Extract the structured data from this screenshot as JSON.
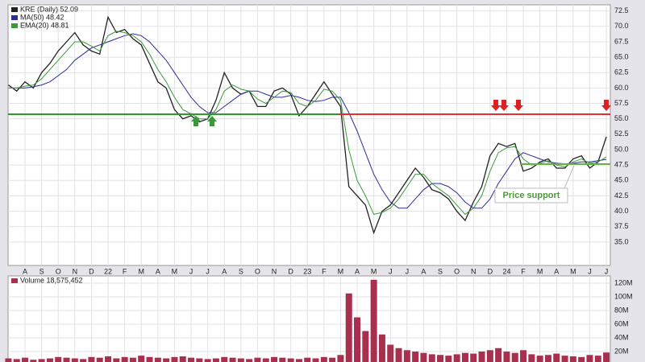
{
  "chart_data": [
    {
      "type": "line",
      "x": [
        -1,
        -0.5,
        0,
        0.5,
        1,
        1.5,
        2,
        2.5,
        3,
        3.5,
        4,
        4.5,
        5,
        5.5,
        6,
        6.5,
        7,
        7.5,
        8,
        8.5,
        9,
        9.5,
        10,
        10.5,
        11,
        11.5,
        12,
        12.5,
        13,
        13.5,
        14,
        14.5,
        15,
        15.5,
        16,
        16.5,
        17,
        17.5,
        18,
        18.5,
        19,
        19.5,
        20,
        20.5,
        21,
        21.5,
        22,
        22.5,
        23,
        23.5,
        24,
        24.5,
        25,
        25.5,
        26,
        26.5,
        27,
        27.5,
        28,
        28.5,
        29,
        29.5,
        30,
        30.5,
        31,
        31.5,
        32,
        32.5,
        33,
        33.5,
        34,
        34.5,
        35
      ],
      "series": [
        {
          "name": "KRE (Daily) 52.09",
          "color": "#222222",
          "values": [
            60.5,
            59.5,
            61,
            60,
            62.5,
            64,
            66,
            67.5,
            69,
            67,
            66,
            65.5,
            71.5,
            69,
            69.5,
            68,
            67,
            64,
            61,
            60,
            56.5,
            55,
            55.5,
            54.5,
            55,
            58,
            62.5,
            60,
            59,
            59.5,
            57,
            57,
            59.5,
            60,
            59,
            55.5,
            57,
            59,
            61,
            59,
            57,
            44,
            42.5,
            41,
            36.5,
            40,
            41,
            43,
            45,
            47,
            45.5,
            43.5,
            43,
            42,
            40,
            38.5,
            41.5,
            44,
            49,
            51,
            50.5,
            51,
            46.5,
            47,
            48,
            48.5,
            47,
            47,
            48.5,
            49,
            47,
            48,
            52.09
          ]
        },
        {
          "name": "MA(50) 48.42",
          "color": "#2c2c96",
          "values": [
            60,
            60,
            60,
            60.2,
            60.5,
            61,
            62,
            63,
            64.5,
            65.5,
            66.5,
            67,
            67.5,
            68,
            68.5,
            68.8,
            68.5,
            67.5,
            66,
            64.5,
            62.5,
            60.5,
            58.5,
            57,
            56,
            56,
            57,
            58,
            59,
            59.5,
            59.5,
            59,
            58.5,
            58.5,
            58.8,
            58.5,
            58,
            57.8,
            58,
            58.5,
            58.5,
            56,
            53,
            49.5,
            46,
            43.5,
            41.5,
            40.5,
            40.5,
            42,
            43.5,
            44.5,
            44.5,
            44,
            43,
            41.5,
            40.5,
            40.5,
            42,
            44.5,
            46.5,
            48.5,
            49.5,
            49,
            48.5,
            48,
            47.8,
            47.7,
            47.8,
            48,
            48,
            48.2,
            48.42
          ]
        },
        {
          "name": "EMA(20) 48.81",
          "color": "#3a9a3a",
          "values": [
            60,
            60,
            60.3,
            60.5,
            61.5,
            63,
            64.5,
            66,
            67.5,
            67.5,
            66.8,
            66,
            68.5,
            69.2,
            69,
            68.5,
            67.5,
            65.5,
            63,
            61,
            58.5,
            56.5,
            55.8,
            55,
            55,
            56.5,
            59.5,
            60.5,
            59.8,
            59.5,
            58.2,
            57.5,
            58.5,
            59.5,
            59.3,
            57.5,
            57,
            58,
            59.8,
            59.5,
            58,
            50,
            45,
            42.5,
            39.5,
            39.8,
            40.5,
            42,
            44,
            46,
            46,
            44.5,
            43.5,
            42.5,
            41,
            39.5,
            40.5,
            42.5,
            46.5,
            49.5,
            50.3,
            50.5,
            48.5,
            47.5,
            47.8,
            48.2,
            47.5,
            47.2,
            48,
            48.5,
            47.8,
            48,
            48.81
          ]
        }
      ],
      "xlim": [
        -1.02,
        35.24
      ],
      "xticks": [
        {
          "value": 0,
          "label": "A"
        },
        {
          "value": 1,
          "label": "S"
        },
        {
          "value": 2,
          "label": "O"
        },
        {
          "value": 3,
          "label": "N"
        },
        {
          "value": 4,
          "label": "D"
        },
        {
          "value": 5,
          "label": "22"
        },
        {
          "value": 6,
          "label": "F"
        },
        {
          "value": 7,
          "label": "M"
        },
        {
          "value": 8,
          "label": "A"
        },
        {
          "value": 9,
          "label": "M"
        },
        {
          "value": 10,
          "label": "J"
        },
        {
          "value": 11,
          "label": "J"
        },
        {
          "value": 12,
          "label": "A"
        },
        {
          "value": 13,
          "label": "S"
        },
        {
          "value": 14,
          "label": "O"
        },
        {
          "value": 15,
          "label": "N"
        },
        {
          "value": 16,
          "label": "D"
        },
        {
          "value": 17,
          "label": "23"
        },
        {
          "value": 18,
          "label": "F"
        },
        {
          "value": 19,
          "label": "M"
        },
        {
          "value": 20,
          "label": "A"
        },
        {
          "value": 21,
          "label": "M"
        },
        {
          "value": 22,
          "label": "J"
        },
        {
          "value": 23,
          "label": "J"
        },
        {
          "value": 24,
          "label": "A"
        },
        {
          "value": 25,
          "label": "S"
        },
        {
          "value": 26,
          "label": "O"
        },
        {
          "value": 27,
          "label": "N"
        },
        {
          "value": 28,
          "label": "D"
        },
        {
          "value": 29,
          "label": "24"
        },
        {
          "value": 30,
          "label": "F"
        },
        {
          "value": 31,
          "label": "M"
        },
        {
          "value": 32,
          "label": "A"
        },
        {
          "value": 33,
          "label": "M"
        },
        {
          "value": 34,
          "label": "J"
        },
        {
          "value": 35,
          "label": "J"
        }
      ],
      "ylim": [
        31.2,
        73.5
      ],
      "yticks": [
        {
          "value": 35,
          "label": "35.0"
        },
        37.5,
        {
          "value": 40,
          "label": "40.0"
        },
        42.5,
        {
          "value": 45,
          "label": "45.0"
        },
        47.5,
        {
          "value": 50,
          "label": "50.0"
        },
        52.5,
        {
          "value": 55,
          "label": "55.0"
        },
        57.5,
        {
          "value": 60,
          "label": "60.0"
        },
        62.5,
        {
          "value": 65,
          "label": "65.0"
        },
        67.5,
        {
          "value": 70,
          "label": "70.0"
        },
        72.5
      ],
      "grid": true,
      "annotation": "Price support"
    },
    {
      "type": "bar",
      "x": [
        -1,
        -0.5,
        0,
        0.5,
        1,
        1.5,
        2,
        2.5,
        3,
        3.5,
        4,
        4.5,
        5,
        5.5,
        6,
        6.5,
        7,
        7.5,
        8,
        8.5,
        9,
        9.5,
        10,
        10.5,
        11,
        11.5,
        12,
        12.5,
        13,
        13.5,
        14,
        14.5,
        15,
        15.5,
        16,
        16.5,
        17,
        17.5,
        18,
        18.5,
        19,
        19.5,
        20,
        20.5,
        21,
        21.5,
        22,
        22.5,
        23,
        23.5,
        24,
        24.5,
        25,
        25.5,
        26,
        26.5,
        27,
        27.5,
        28,
        28.5,
        29,
        29.5,
        30,
        30.5,
        31,
        31.5,
        32,
        32.5,
        33,
        33.5,
        34,
        34.5,
        35
      ],
      "series": [
        {
          "name": "Volume 18,575,452",
          "color": "#a8304e",
          "values": [
            10000000,
            9000000,
            11000000,
            8000000,
            9000000,
            10000000,
            12000000,
            11000000,
            10000000,
            9000000,
            12000000,
            11000000,
            13000000,
            10000000,
            12000000,
            11000000,
            14000000,
            12000000,
            11000000,
            10000000,
            12000000,
            13000000,
            11000000,
            10000000,
            9000000,
            10000000,
            12000000,
            11000000,
            10000000,
            9000000,
            11000000,
            10000000,
            12000000,
            11000000,
            10000000,
            9000000,
            11000000,
            10000000,
            12000000,
            11000000,
            15000000,
            105000000,
            70000000,
            50000000,
            125000000,
            45000000,
            30000000,
            25000000,
            22000000,
            20000000,
            18000000,
            16000000,
            15000000,
            14000000,
            16000000,
            18000000,
            17000000,
            20000000,
            22000000,
            25000000,
            20000000,
            18000000,
            22000000,
            16000000,
            14000000,
            15000000,
            17000000,
            14000000,
            13000000,
            12000000,
            15000000,
            14000000,
            18575452
          ]
        }
      ],
      "xlim": [
        -1.02,
        35.24
      ],
      "ylim": [
        4700000,
        130600000
      ],
      "yticks": [
        {
          "value": 20000000,
          "label": "20M"
        },
        {
          "value": 40000000,
          "label": "40M"
        },
        {
          "value": 60000000,
          "label": "60M"
        },
        {
          "value": 80000000,
          "label": "80M"
        },
        {
          "value": 100000000,
          "label": "100M"
        },
        {
          "value": 120000000,
          "label": "120M"
        }
      ],
      "grid": true
    }
  ]
}
